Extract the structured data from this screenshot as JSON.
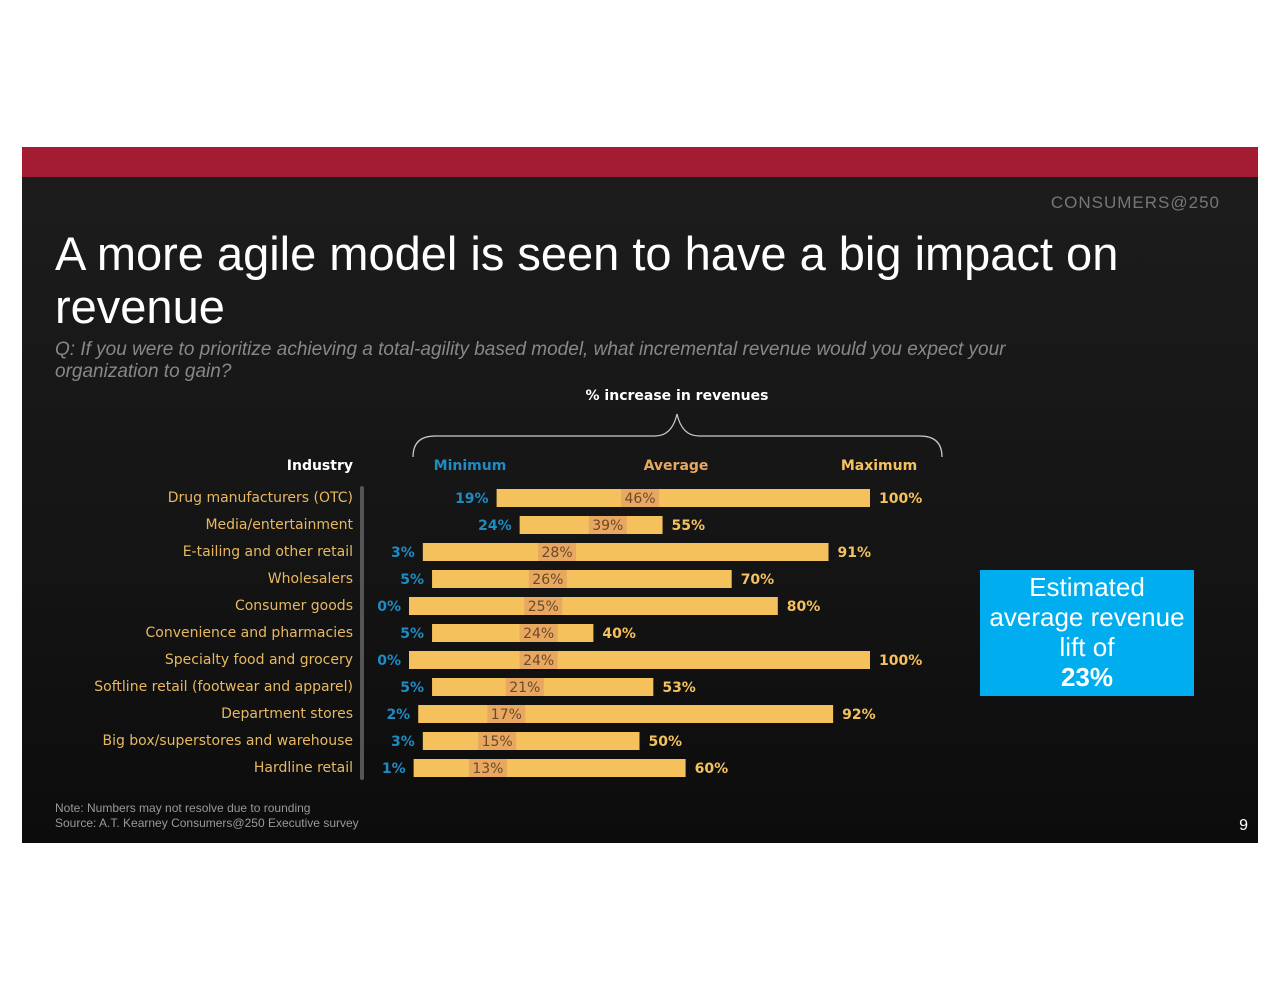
{
  "slide": {
    "logo": "CONSUMERS@250",
    "title": "A more agile model is seen to have a big impact on revenue",
    "question": "Q: If you were to prioritize achieving a total-agility based model, what incremental revenue would you expect your organization to gain?",
    "note": "Note: Numbers may not resolve due to rounding",
    "source": "Source: A.T. Kearney Consumers@250 Executive survey",
    "page": "9"
  },
  "callout": {
    "text": "Estimated average revenue lift of",
    "value": "23%"
  },
  "chart_data": {
    "type": "range",
    "title": "% increase in revenues",
    "category_header": "Industry",
    "categories": [
      "Drug manufacturers (OTC)",
      "Media/entertainment",
      "E-tailing and other retail",
      "Wholesalers",
      "Consumer goods",
      "Convenience and pharmacies",
      "Specialty food and grocery",
      "Softline retail (footwear and apparel)",
      "Department stores",
      "Big box/superstores and warehouse",
      "Hardline retail"
    ],
    "series": [
      {
        "name": "Minimum",
        "color": "#1e8bc3",
        "values": [
          19,
          24,
          3,
          5,
          0,
          5,
          0,
          5,
          2,
          3,
          1
        ],
        "value_labels": [
          "19%",
          "24%",
          "3%",
          "5%",
          "0%",
          "5%",
          "0%",
          "5%",
          "2%",
          "3%",
          "1%"
        ]
      },
      {
        "name": "Average",
        "color": "#e8a860",
        "values": [
          46,
          39,
          28,
          26,
          25,
          24,
          24,
          21,
          17,
          15,
          13
        ],
        "value_labels": [
          "46%",
          "39%",
          "28%",
          "26%",
          "25%",
          "24%",
          "24%",
          "21%",
          "17%",
          "15%",
          "13%"
        ]
      },
      {
        "name": "Maximum",
        "color": "#f5c15c",
        "values": [
          100,
          55,
          91,
          70,
          80,
          40,
          100,
          53,
          92,
          50,
          60
        ],
        "value_labels": [
          "100%",
          "55%",
          "91%",
          "70%",
          "80%",
          "40%",
          "100%",
          "53%",
          "92%",
          "50%",
          "60%"
        ]
      }
    ],
    "xlim": [
      0,
      100
    ]
  }
}
